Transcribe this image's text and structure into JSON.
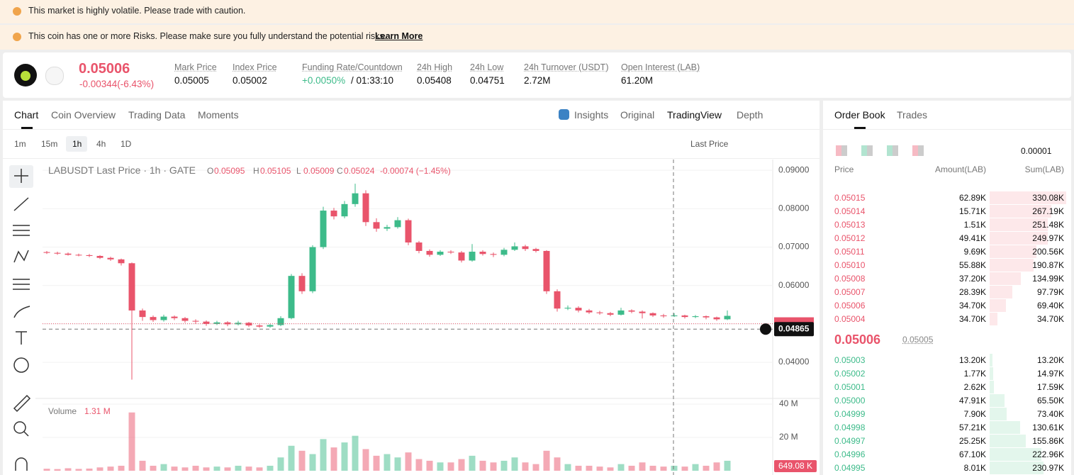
{
  "banners": [
    "This market is highly volatile. Please trade with caution.",
    "This coin has one or more Risks. Please make sure you fully understand the potential risks."
  ],
  "learn_more": "Learn More",
  "ticker": {
    "price": "0.05006",
    "change": "-0.00344(-6.43%)",
    "stats": [
      {
        "label": "Mark Price",
        "value": "0.05005"
      },
      {
        "label": "Index Price",
        "value": "0.05002"
      },
      {
        "label": "Funding Rate/Countdown",
        "value": "+0.0050%",
        "countdown": "/ 01:33:10"
      },
      {
        "label": "24h High",
        "value": "0.05408"
      },
      {
        "label": "24h Low",
        "value": "0.04751"
      },
      {
        "label": "24h Turnover (USDT)",
        "value": "2.72M"
      },
      {
        "label": "Open Interest (LAB)",
        "value": "61.20M"
      }
    ]
  },
  "tabs": {
    "left": [
      "Chart",
      "Coin Overview",
      "Trading Data",
      "Moments"
    ],
    "right": [
      "Insights",
      "Original",
      "TradingView",
      "Depth"
    ]
  },
  "toolbar": {
    "intervals": [
      "1m",
      "15m",
      "1h",
      "4h",
      "1D"
    ],
    "price_type": "Last Price"
  },
  "legend": {
    "title": "LABUSDT Last Price · 1h · GATE",
    "ohlc": [
      {
        "label": "O",
        "value": "0.05095"
      },
      {
        "label": "H",
        "value": "0.05105"
      },
      {
        "label": "L",
        "value": "0.05009"
      },
      {
        "label": "C",
        "value": "0.05024"
      }
    ],
    "change": "-0.00074 (−1.45%)"
  },
  "volume_legend": {
    "label": "Volume",
    "value": "1.31 M"
  },
  "crosshair": {
    "price": "0.04865",
    "volume": "649.08 K"
  },
  "chart_data": {
    "type": "candlestick",
    "up_color": "#3dbb8a",
    "down_color": "#e9546b",
    "grid": true,
    "ylim": [
      0.0306,
      0.0928
    ],
    "yticks": [
      {
        "value": 0.04,
        "label": "0.04000"
      },
      {
        "value": 0.05,
        "label": "0.05000"
      },
      {
        "value": 0.06,
        "label": "0.06000"
      },
      {
        "value": 0.07,
        "label": "0.07000"
      },
      {
        "value": 0.08,
        "label": "0.08000"
      },
      {
        "value": 0.09,
        "label": "0.09000"
      }
    ],
    "candles": [
      [
        0.0687,
        0.069,
        0.0682,
        0.0685
      ],
      [
        0.0685,
        0.0688,
        0.068,
        0.0683
      ],
      [
        0.0683,
        0.0686,
        0.0678,
        0.068
      ],
      [
        0.068,
        0.0683,
        0.0676,
        0.0679
      ],
      [
        0.0679,
        0.0682,
        0.0674,
        0.0677
      ],
      [
        0.0677,
        0.0679,
        0.0669,
        0.0672
      ],
      [
        0.0672,
        0.0675,
        0.0664,
        0.0668
      ],
      [
        0.0668,
        0.067,
        0.0652,
        0.0658
      ],
      [
        0.0658,
        0.066,
        0.0355,
        0.0535
      ],
      [
        0.0535,
        0.054,
        0.0508,
        0.0518
      ],
      [
        0.0518,
        0.0522,
        0.0505,
        0.051
      ],
      [
        0.051,
        0.0524,
        0.0506,
        0.0519
      ],
      [
        0.0519,
        0.0522,
        0.051,
        0.0515
      ],
      [
        0.0515,
        0.0518,
        0.0503,
        0.0508
      ],
      [
        0.0508,
        0.0512,
        0.05,
        0.0506
      ],
      [
        0.0506,
        0.0509,
        0.0495,
        0.05
      ],
      [
        0.05,
        0.0508,
        0.0497,
        0.0504
      ],
      [
        0.0504,
        0.0507,
        0.0494,
        0.0499
      ],
      [
        0.0499,
        0.0508,
        0.0496,
        0.0503
      ],
      [
        0.0503,
        0.0505,
        0.0492,
        0.0496
      ],
      [
        0.0496,
        0.0499,
        0.049,
        0.0493
      ],
      [
        0.0493,
        0.05,
        0.049,
        0.0497
      ],
      [
        0.0497,
        0.052,
        0.0494,
        0.0515
      ],
      [
        0.0515,
        0.063,
        0.0512,
        0.0625
      ],
      [
        0.0625,
        0.0632,
        0.0578,
        0.0585
      ],
      [
        0.0585,
        0.0705,
        0.058,
        0.07
      ],
      [
        0.07,
        0.0805,
        0.0695,
        0.0795
      ],
      [
        0.0795,
        0.0802,
        0.0772,
        0.078
      ],
      [
        0.078,
        0.082,
        0.0775,
        0.0812
      ],
      [
        0.0812,
        0.0865,
        0.0805,
        0.084
      ],
      [
        0.084,
        0.0848,
        0.0755,
        0.0765
      ],
      [
        0.0765,
        0.0775,
        0.074,
        0.0748
      ],
      [
        0.0748,
        0.0758,
        0.0742,
        0.0752
      ],
      [
        0.0752,
        0.0778,
        0.0748,
        0.077
      ],
      [
        0.077,
        0.0774,
        0.0705,
        0.0712
      ],
      [
        0.0712,
        0.0716,
        0.0684,
        0.069
      ],
      [
        0.069,
        0.0694,
        0.0675,
        0.068
      ],
      [
        0.068,
        0.0692,
        0.0677,
        0.0688
      ],
      [
        0.0688,
        0.0692,
        0.0682,
        0.0686
      ],
      [
        0.0686,
        0.069,
        0.066,
        0.0665
      ],
      [
        0.0665,
        0.0708,
        0.0662,
        0.0688
      ],
      [
        0.0688,
        0.0692,
        0.0678,
        0.0682
      ],
      [
        0.0682,
        0.0686,
        0.0674,
        0.068
      ],
      [
        0.068,
        0.0698,
        0.0676,
        0.0693
      ],
      [
        0.0693,
        0.0712,
        0.069,
        0.0702
      ],
      [
        0.0702,
        0.0706,
        0.069,
        0.0695
      ],
      [
        0.0695,
        0.0698,
        0.0686,
        0.069
      ],
      [
        0.069,
        0.0692,
        0.0578,
        0.0585
      ],
      [
        0.0585,
        0.059,
        0.0532,
        0.054
      ],
      [
        0.054,
        0.0548,
        0.0536,
        0.0542
      ],
      [
        0.0542,
        0.0546,
        0.053,
        0.0535
      ],
      [
        0.0535,
        0.0539,
        0.0526,
        0.053
      ],
      [
        0.053,
        0.0534,
        0.0524,
        0.0528
      ],
      [
        0.0528,
        0.0531,
        0.052,
        0.0524
      ],
      [
        0.0524,
        0.0542,
        0.0522,
        0.0535
      ],
      [
        0.0535,
        0.0538,
        0.0528,
        0.0532
      ],
      [
        0.0532,
        0.0535,
        0.0514,
        0.0528
      ],
      [
        0.0528,
        0.053,
        0.0518,
        0.0522
      ],
      [
        0.0522,
        0.0526,
        0.0516,
        0.052
      ],
      [
        0.052,
        0.0528,
        0.0518,
        0.0522
      ],
      [
        0.0522,
        0.0524,
        0.0514,
        0.0518
      ],
      [
        0.0518,
        0.0523,
        0.0515,
        0.052
      ],
      [
        0.052,
        0.0522,
        0.0512,
        0.0517
      ],
      [
        0.0517,
        0.0519,
        0.0508,
        0.0512
      ],
      [
        0.0512,
        0.0535,
        0.051,
        0.0521
      ]
    ],
    "volume": [
      1.2,
      1.0,
      1.5,
      1.1,
      1.3,
      2.0,
      2.5,
      3.0,
      35,
      6,
      3,
      4,
      2.5,
      2,
      3,
      2,
      2.5,
      2,
      3,
      2.5,
      2,
      3,
      8,
      15,
      12,
      10,
      19,
      14,
      17,
      21,
      13,
      9,
      10,
      8,
      11,
      7,
      6,
      5,
      5,
      7,
      9,
      6,
      5,
      6,
      8,
      5,
      4,
      12,
      8,
      4,
      3,
      3,
      2.5,
      2,
      4,
      3,
      5,
      3,
      2.5,
      3,
      2.5,
      4,
      3,
      5,
      6
    ],
    "volume_ylim": [
      0,
      43
    ],
    "volume_yticks": [
      {
        "value": 20,
        "label": "20 M"
      },
      {
        "value": 40,
        "label": "40 M"
      }
    ]
  },
  "order_book": {
    "tabs": [
      "Order Book",
      "Trades"
    ],
    "precision": "0.00001",
    "headers": [
      "Price",
      "Amount(LAB)",
      "Sum(LAB)"
    ],
    "asks": [
      [
        "0.05015",
        "62.89K",
        "330.08K"
      ],
      [
        "0.05014",
        "15.71K",
        "267.19K"
      ],
      [
        "0.05013",
        "1.51K",
        "251.48K"
      ],
      [
        "0.05012",
        "49.41K",
        "249.97K"
      ],
      [
        "0.05011",
        "9.69K",
        "200.56K"
      ],
      [
        "0.05010",
        "55.88K",
        "190.87K"
      ],
      [
        "0.05008",
        "37.20K",
        "134.99K"
      ],
      [
        "0.05007",
        "28.39K",
        "97.79K"
      ],
      [
        "0.05006",
        "34.70K",
        "69.40K"
      ],
      [
        "0.05004",
        "34.70K",
        "34.70K"
      ]
    ],
    "last": "0.05006",
    "mark": "0.05005",
    "bids": [
      [
        "0.05003",
        "13.20K",
        "13.20K"
      ],
      [
        "0.05002",
        "1.77K",
        "14.97K"
      ],
      [
        "0.05001",
        "2.62K",
        "17.59K"
      ],
      [
        "0.05000",
        "47.91K",
        "65.50K"
      ],
      [
        "0.04999",
        "7.90K",
        "73.40K"
      ],
      [
        "0.04998",
        "57.21K",
        "130.61K"
      ],
      [
        "0.04997",
        "25.25K",
        "155.86K"
      ],
      [
        "0.04996",
        "67.10K",
        "222.96K"
      ],
      [
        "0.04995",
        "8.01K",
        "230.97K"
      ]
    ]
  }
}
